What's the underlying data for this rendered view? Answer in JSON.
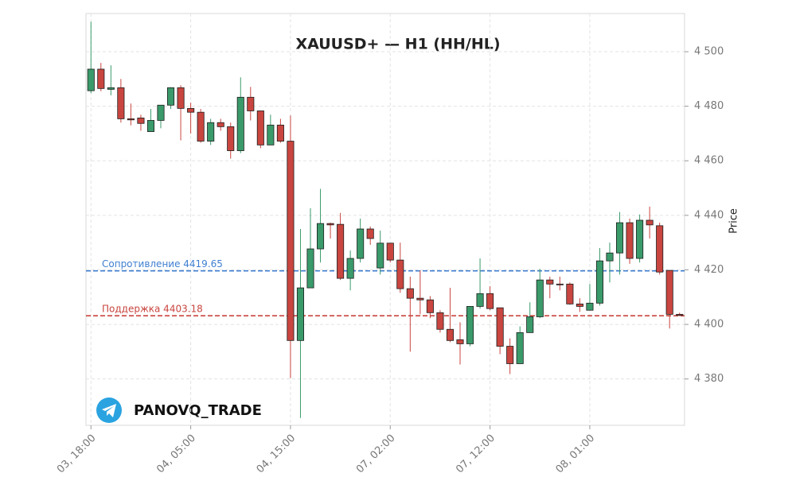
{
  "chart_data": {
    "type": "candlestick",
    "title": "XAUUSD+ — H1 (HH/HL)",
    "y_label": "Price",
    "watermark": "PANOVQ_TRADE",
    "categories": [
      "03, 18:00",
      null,
      null,
      null,
      null,
      null,
      null,
      null,
      null,
      null,
      "04, 05:00",
      null,
      null,
      null,
      null,
      null,
      null,
      null,
      null,
      null,
      "04, 15:00",
      null,
      null,
      null,
      null,
      null,
      null,
      null,
      null,
      null,
      "07, 02:00",
      null,
      null,
      null,
      null,
      null,
      null,
      null,
      null,
      null,
      "07, 12:00",
      null,
      null,
      null,
      null,
      null,
      null,
      null,
      null,
      null,
      "08, 01:00",
      null,
      null,
      null,
      null,
      null,
      null,
      null,
      null,
      null
    ],
    "open": [
      4485.7,
      4493.6,
      4486.2,
      4486.8,
      4475.4,
      4475.7,
      4470.7,
      4474.8,
      4480.4,
      4486.8,
      4479.2,
      4477.8,
      4467.2,
      4474.0,
      4472.5,
      4463.7,
      4483.3,
      4478.3,
      4465.8,
      4473.1,
      4467.2,
      4394.1,
      4413.4,
      4427.7,
      4437.0,
      4436.7,
      4416.9,
      4424.2,
      4435.0,
      4420.7,
      4429.8,
      4423.6,
      4413.1,
      4409.6,
      4409.0,
      4404.3,
      4398.2,
      4394.4,
      4392.9,
      4406.6,
      4411.3,
      4406.1,
      4392.0,
      4385.6,
      4397.0,
      4402.8,
      4416.3,
      4414.8,
      4414.8,
      4407.5,
      4405.2,
      4407.8,
      4423.3,
      4426.2,
      4437.3,
      4424.2,
      4438.2,
      4436.2,
      4419.8,
      4403.7
    ],
    "high": [
      4511.0,
      4495.9,
      4495.0,
      4490.0,
      4481.0,
      4476.9,
      4479.0,
      4480.4,
      4487.0,
      4487.7,
      4481.3,
      4479.0,
      4475.4,
      4475.4,
      4474.0,
      4490.6,
      4487.1,
      4478.3,
      4476.9,
      4475.4,
      4476.6,
      4435.0,
      4442.6,
      4449.7,
      4437.3,
      4440.9,
      4427.1,
      4438.8,
      4435.9,
      4434.4,
      4429.8,
      4430.0,
      4417.5,
      4419.8,
      4410.4,
      4405.2,
      4413.4,
      4400.8,
      4406.6,
      4424.2,
      4414.0,
      4406.1,
      4394.9,
      4399.3,
      4408.1,
      4420.4,
      4417.5,
      4417.5,
      4415.4,
      4409.6,
      4414.8,
      4428.0,
      4430.0,
      4441.2,
      4438.8,
      4440.3,
      4443.2,
      4437.3,
      4419.8,
      4404.3
    ],
    "low": [
      4484.8,
      4485.5,
      4484.0,
      4474.0,
      4473.0,
      4471.0,
      4470.7,
      4471.9,
      4479.0,
      4467.5,
      4470.0,
      4466.6,
      4465.8,
      4471.0,
      4460.8,
      4462.8,
      4474.8,
      4464.6,
      4465.8,
      4466.6,
      4380.3,
      4365.7,
      4413.4,
      4422.7,
      4431.5,
      4416.3,
      4412.5,
      4422.7,
      4429.2,
      4418.3,
      4422.7,
      4411.6,
      4390.0,
      4403.7,
      4402.3,
      4397.0,
      4393.5,
      4385.3,
      4392.0,
      4405.8,
      4405.2,
      4389.1,
      4381.8,
      4385.6,
      4397.0,
      4402.3,
      4409.6,
      4412.5,
      4407.2,
      4404.6,
      4405.2,
      4406.9,
      4415.4,
      4418.3,
      4422.2,
      4422.7,
      4431.5,
      4418.3,
      4398.5,
      4403.0
    ],
    "close": [
      4493.6,
      4486.5,
      4486.8,
      4475.4,
      4475.0,
      4473.7,
      4474.8,
      4480.4,
      4486.8,
      4479.2,
      4477.8,
      4467.2,
      4474.0,
      4472.5,
      4463.7,
      4483.3,
      4478.3,
      4465.8,
      4473.1,
      4467.2,
      4394.1,
      4413.4,
      4427.7,
      4437.0,
      4436.5,
      4416.9,
      4424.2,
      4435.0,
      4431.5,
      4429.8,
      4423.6,
      4413.1,
      4409.6,
      4409.0,
      4404.3,
      4398.2,
      4394.1,
      4392.9,
      4406.6,
      4411.3,
      4405.8,
      4392.0,
      4385.6,
      4397.0,
      4402.8,
      4416.3,
      4414.8,
      4414.5,
      4407.5,
      4406.6,
      4407.8,
      4423.3,
      4426.2,
      4437.3,
      4424.2,
      4438.2,
      4436.5,
      4419.2,
      4403.7,
      4403.3
    ],
    "up_color": "#3a9a6a",
    "down_color": "#c9453f",
    "levels": [
      {
        "label": "Сопротивление 4419.65",
        "value": 4419.65,
        "color": "#3f7fd0"
      },
      {
        "label": "Поддержка 4403.18",
        "value": 4403.18,
        "color": "#c9453f"
      }
    ],
    "ylim": [
      4363,
      4514
    ],
    "yticks": [
      {
        "value": 4380,
        "label": "4 380"
      },
      {
        "value": 4400,
        "label": "4 400"
      },
      {
        "value": 4420,
        "label": "4 420"
      },
      {
        "value": 4440,
        "label": "4 440"
      },
      {
        "value": 4460,
        "label": "4 460"
      },
      {
        "value": 4480,
        "label": "4 480"
      },
      {
        "value": 4500,
        "label": "4 500"
      }
    ],
    "grid": true
  }
}
